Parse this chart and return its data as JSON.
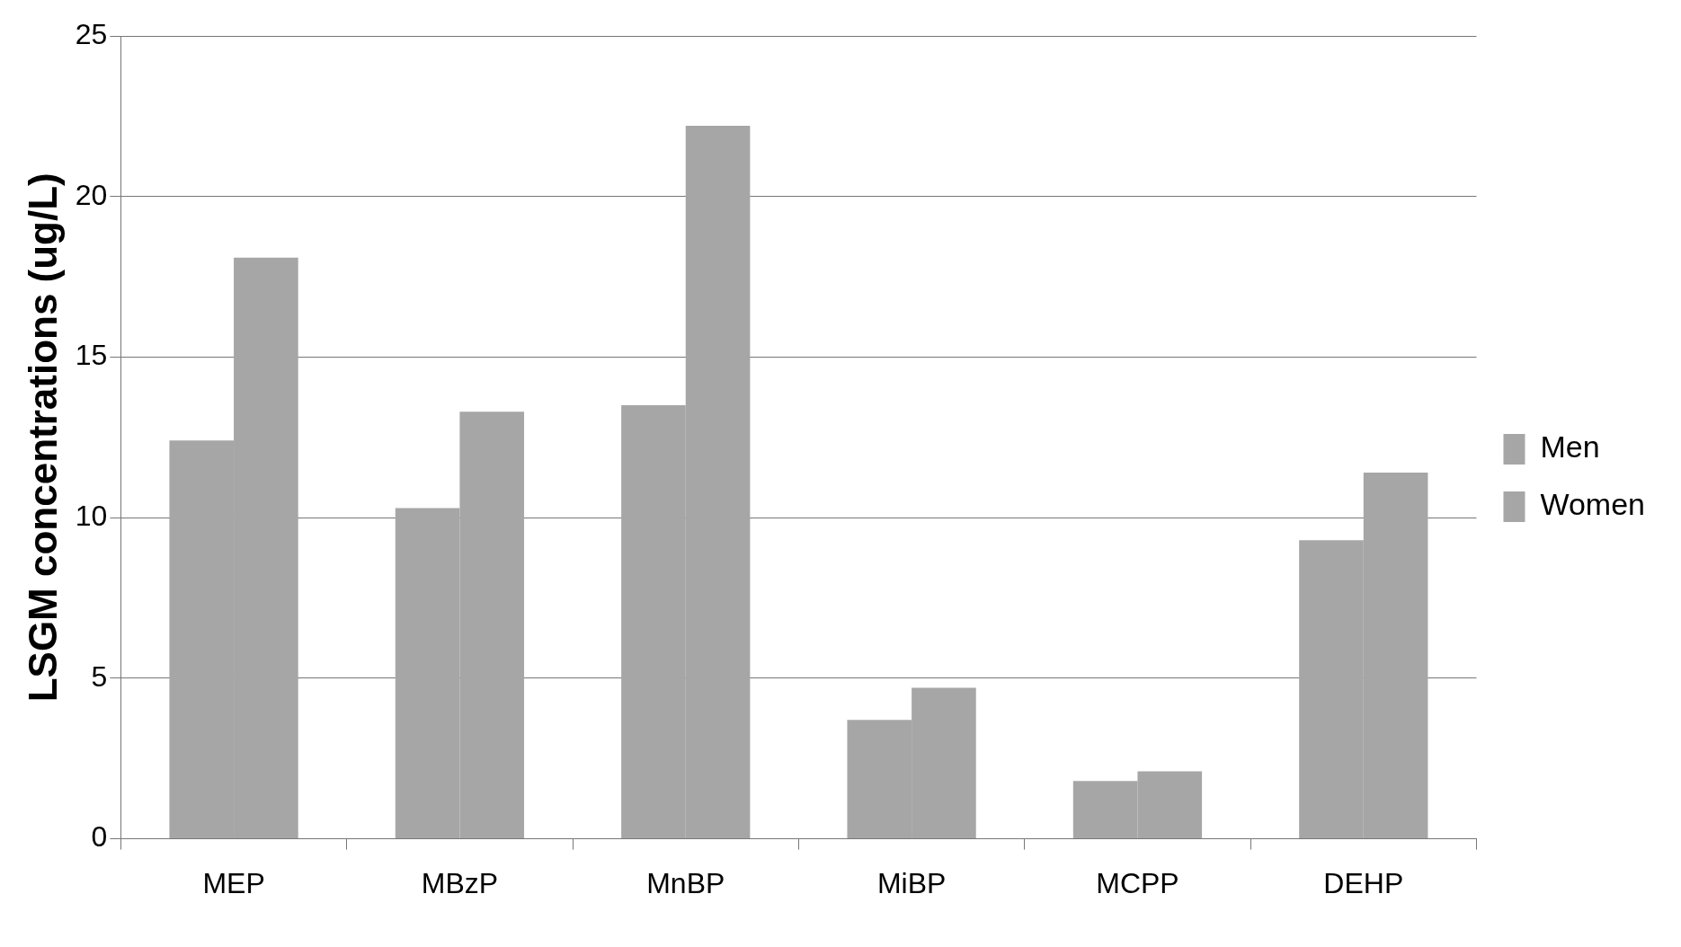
{
  "chart_data": {
    "type": "bar",
    "ylabel": "LSGM concentrations (ug/L)",
    "categories": [
      "MEP",
      "MBzP",
      "MnBP",
      "MiBP",
      "MCPP",
      "DEHP"
    ],
    "series": [
      {
        "name": "Men",
        "color": "#a6a6a6",
        "values": [
          12.4,
          10.3,
          13.5,
          3.7,
          1.8,
          9.3
        ]
      },
      {
        "name": "Women",
        "color": "#a6a6a6",
        "values": [
          18.1,
          13.3,
          22.2,
          4.7,
          2.1,
          11.4
        ]
      }
    ],
    "ylim": [
      0,
      25
    ],
    "yticks": [
      0,
      5,
      10,
      15,
      20,
      25
    ],
    "grid": "y",
    "legend": "right"
  }
}
